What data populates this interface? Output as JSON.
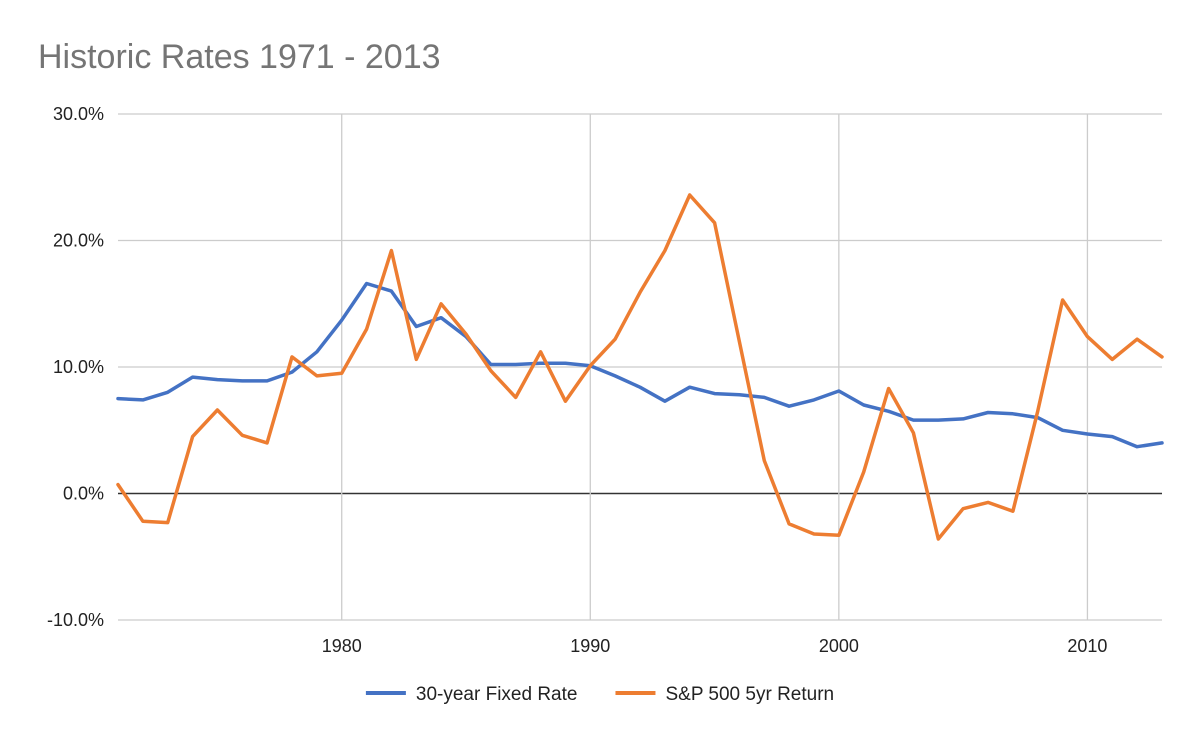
{
  "chart_data": {
    "type": "line",
    "title": "Historic Rates 1971 - 2013",
    "xlabel": "",
    "ylabel": "",
    "xlim": [
      1971,
      2013
    ],
    "ylim": [
      -10,
      30
    ],
    "x_ticks": [
      1980,
      1990,
      2000,
      2010
    ],
    "y_ticks": [
      -10,
      0,
      10,
      20,
      30
    ],
    "y_tick_labels": [
      "-10.0%",
      "0.0%",
      "10.0%",
      "20.0%",
      "30.0%"
    ],
    "grid": true,
    "legend_position": "bottom",
    "x": [
      1971,
      1972,
      1973,
      1974,
      1975,
      1976,
      1977,
      1978,
      1979,
      1980,
      1981,
      1982,
      1983,
      1984,
      1985,
      1986,
      1987,
      1988,
      1989,
      1990,
      1991,
      1992,
      1993,
      1994,
      1995,
      1996,
      1997,
      1998,
      1999,
      2000,
      2001,
      2002,
      2003,
      2004,
      2005,
      2006,
      2007,
      2008,
      2009,
      2010,
      2011,
      2012,
      2013
    ],
    "series": [
      {
        "name": "30-year Fixed Rate",
        "color": "#4472C4",
        "values": [
          7.5,
          7.4,
          8.0,
          9.2,
          9.0,
          8.9,
          8.9,
          9.6,
          11.2,
          13.7,
          16.6,
          16.0,
          13.2,
          13.9,
          12.4,
          10.2,
          10.2,
          10.3,
          10.3,
          10.1,
          9.3,
          8.4,
          7.3,
          8.4,
          7.9,
          7.8,
          7.6,
          6.9,
          7.4,
          8.1,
          7.0,
          6.5,
          5.8,
          5.8,
          5.9,
          6.4,
          6.3,
          6.0,
          5.0,
          4.7,
          4.5,
          3.7,
          4.0
        ]
      },
      {
        "name": "S&P 500 5yr Return",
        "color": "#ED7D31",
        "values": [
          0.7,
          -2.2,
          -2.3,
          4.5,
          6.6,
          4.6,
          4.0,
          10.8,
          9.3,
          9.5,
          13.0,
          19.2,
          10.6,
          15.0,
          12.6,
          9.7,
          7.6,
          11.2,
          7.3,
          10.1,
          12.2,
          15.9,
          19.2,
          23.6,
          21.4,
          12.0,
          2.6,
          -2.4,
          -3.2,
          -3.3,
          1.7,
          8.3,
          4.8,
          -3.6,
          -1.2,
          -0.7,
          -1.4,
          6.5,
          15.3,
          12.4,
          10.6,
          12.2,
          10.8
        ]
      }
    ]
  }
}
